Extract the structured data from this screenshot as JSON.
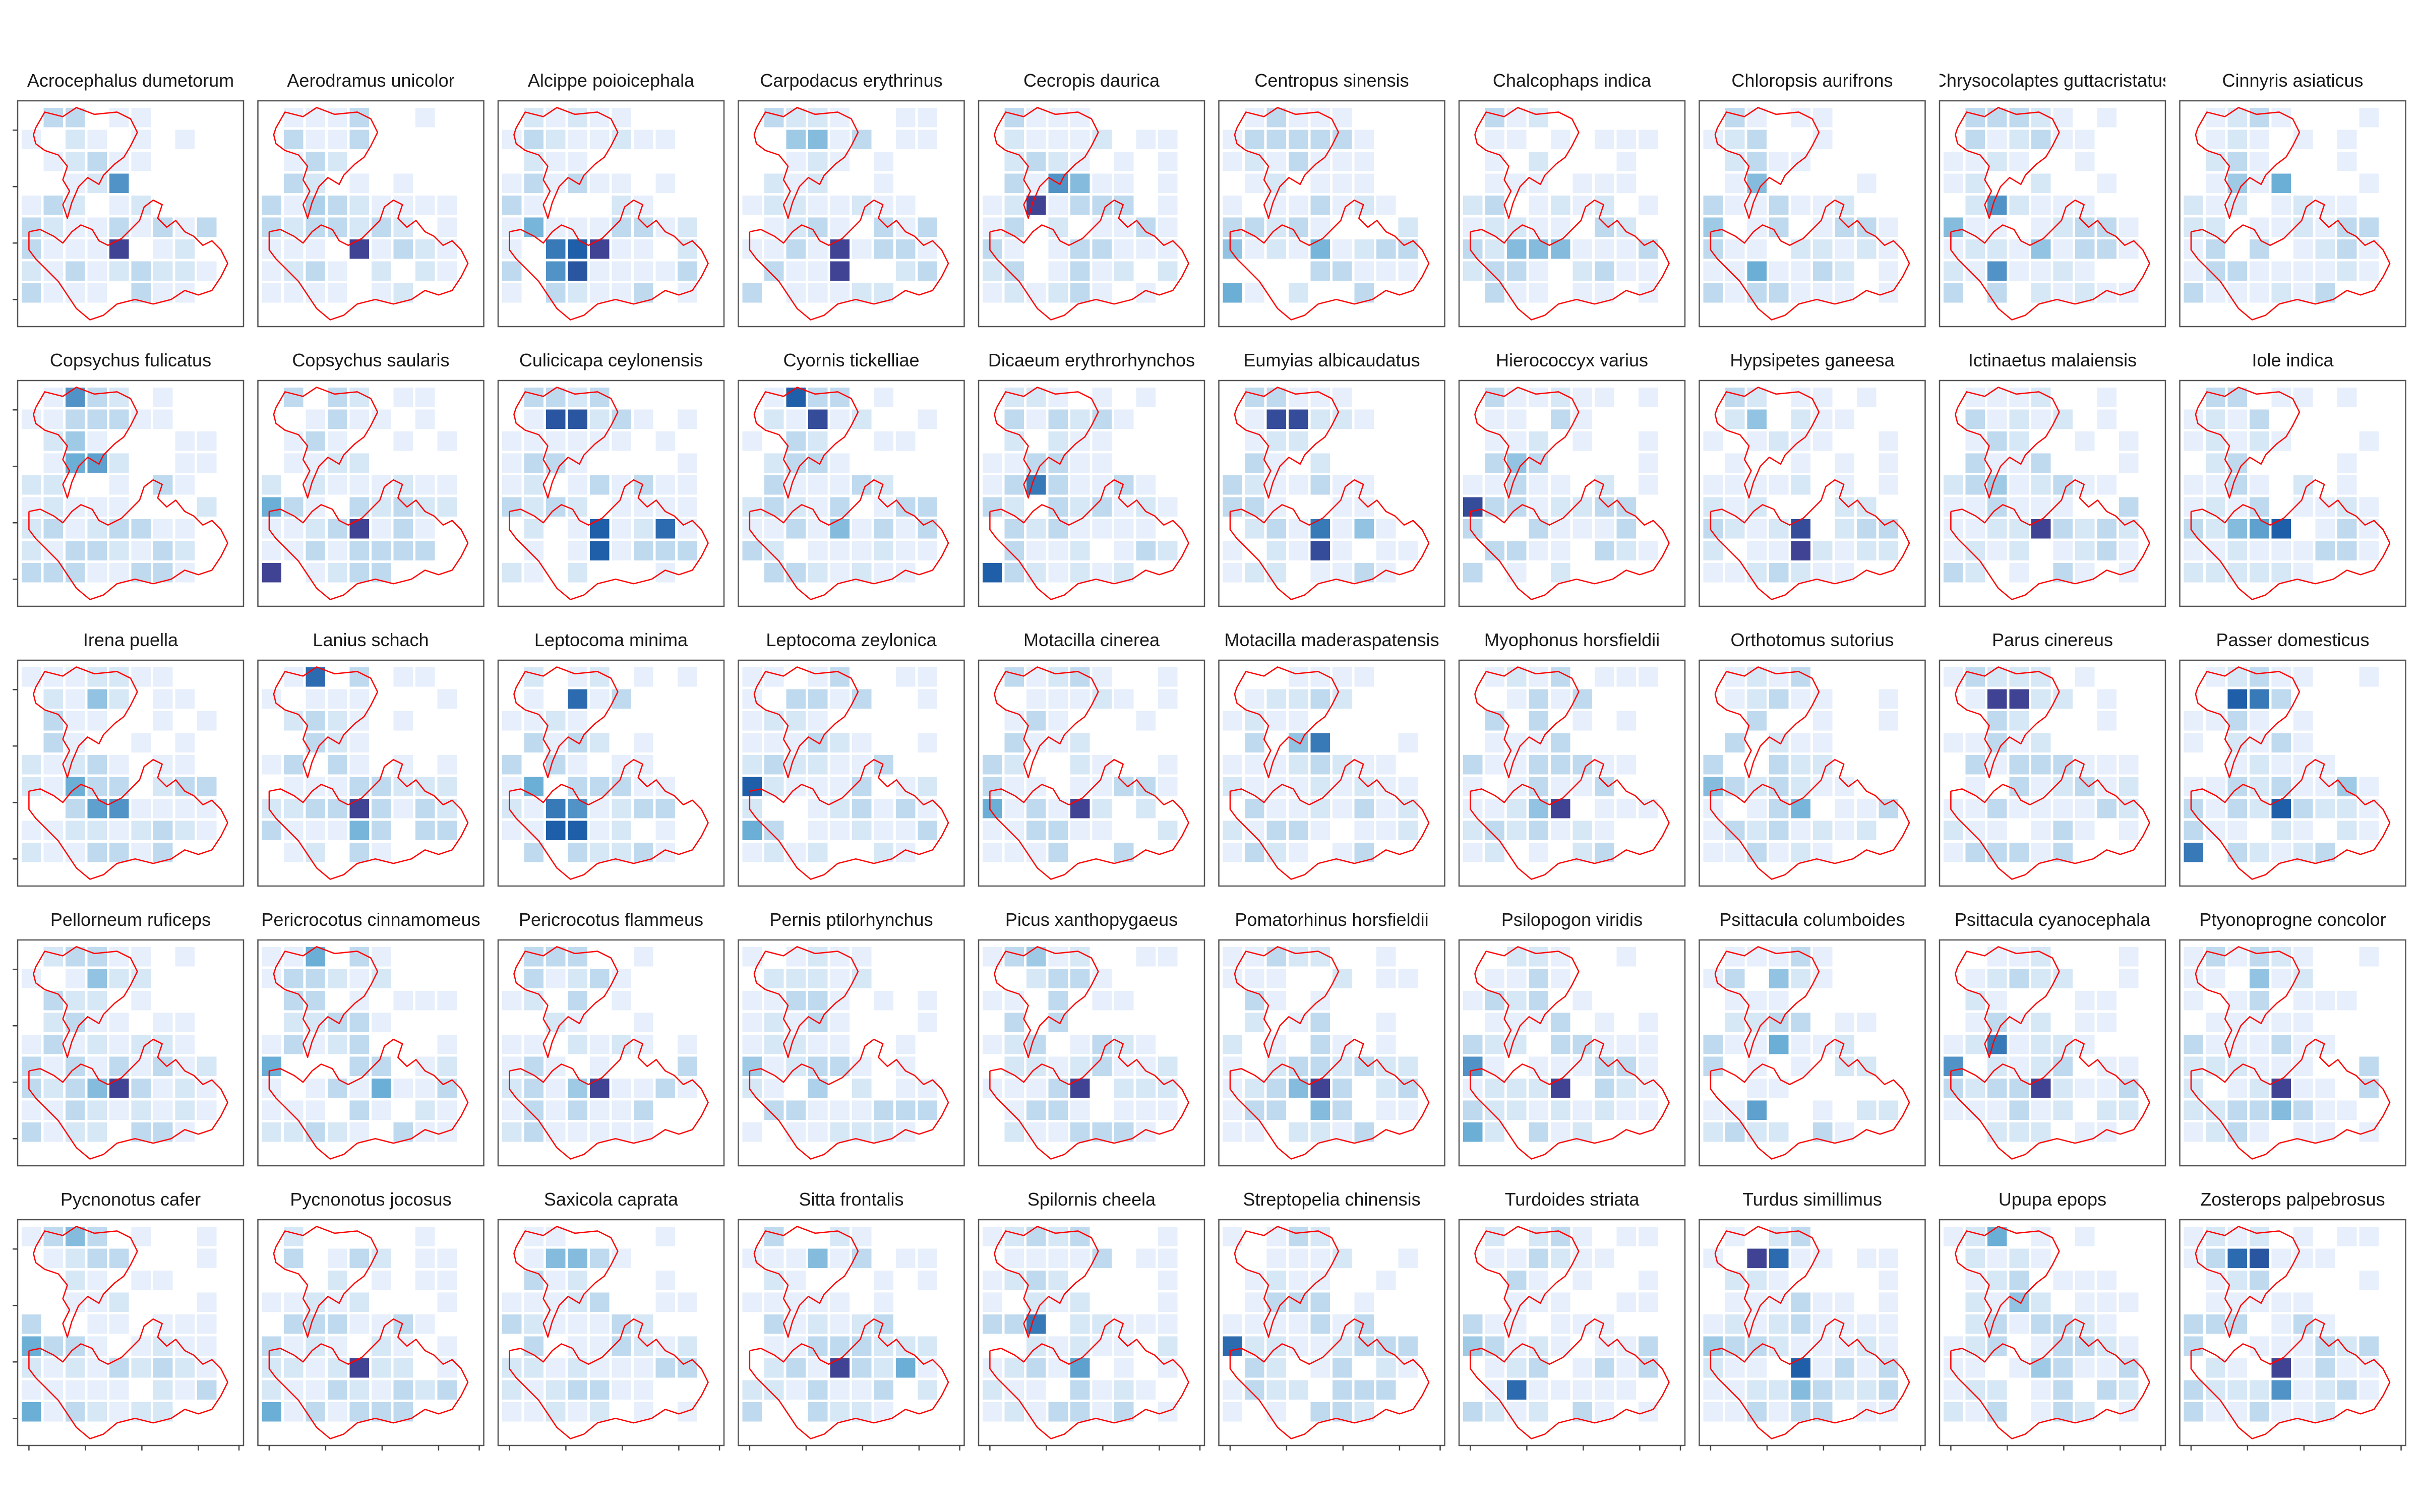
{
  "figure": {
    "colors": {
      "outline": "#ff0000",
      "panel_border": "#555555",
      "tick": "#444444",
      "scale_low": "#eef3fd",
      "scale_mid": "#6baed6",
      "scale_high_a": "#1f5ea8",
      "scale_high_b": "#4b3a8c"
    },
    "legend": "none",
    "grid": false
  },
  "chart_data": {
    "type": "heatmap",
    "title": "",
    "xlabel": "",
    "ylabel": "",
    "layout": "facet grid, 5 rows x 10 columns, one panel per species",
    "cell_grid": "9 columns x 9 rows of tiles per panel",
    "value_scale": "relative occurrence, 0 (light) to 1 (dark)",
    "panels": [
      {
        "species": "Acrocephalus dumetorum",
        "hotspots": [
          {
            "col": 4,
            "row": 3,
            "value": 0.6
          },
          {
            "col": 4,
            "row": 6,
            "value": 0.95
          }
        ]
      },
      {
        "species": "Aerodramus unicolor",
        "hotspots": [
          {
            "col": 2,
            "row": 4,
            "value": 0.25
          },
          {
            "col": 4,
            "row": 6,
            "value": 0.95
          }
        ]
      },
      {
        "species": "Alcippe poioicephala",
        "hotspots": [
          {
            "col": 2,
            "row": 6,
            "value": 0.7
          },
          {
            "col": 3,
            "row": 6,
            "value": 0.8
          },
          {
            "col": 3,
            "row": 7,
            "value": 0.85
          },
          {
            "col": 2,
            "row": 7,
            "value": 0.6
          },
          {
            "col": 4,
            "row": 6,
            "value": 0.95
          },
          {
            "col": 1,
            "row": 5,
            "value": 0.45
          }
        ]
      },
      {
        "species": "Carpodacus erythrinus",
        "hotspots": [
          {
            "col": 2,
            "row": 1,
            "value": 0.3
          },
          {
            "col": 3,
            "row": 1,
            "value": 0.4
          },
          {
            "col": 4,
            "row": 6,
            "value": 0.95
          },
          {
            "col": 4,
            "row": 7,
            "value": 0.95
          }
        ]
      },
      {
        "species": "Cecropis daurica",
        "hotspots": [
          {
            "col": 2,
            "row": 4,
            "value": 0.95
          },
          {
            "col": 3,
            "row": 3,
            "value": 0.6
          },
          {
            "col": 4,
            "row": 3,
            "value": 0.4
          }
        ]
      },
      {
        "species": "Centropus sinensis",
        "hotspots": [
          {
            "col": 0,
            "row": 6,
            "value": 0.35
          },
          {
            "col": 0,
            "row": 8,
            "value": 0.5
          },
          {
            "col": 4,
            "row": 6,
            "value": 0.45
          }
        ]
      },
      {
        "species": "Chalcophaps indica",
        "hotspots": [
          {
            "col": 2,
            "row": 6,
            "value": 0.4
          },
          {
            "col": 3,
            "row": 6,
            "value": 0.4
          },
          {
            "col": 4,
            "row": 6,
            "value": 0.4
          }
        ]
      },
      {
        "species": "Chloropsis aurifrons",
        "hotspots": [
          {
            "col": 2,
            "row": 3,
            "value": 0.4
          },
          {
            "col": 2,
            "row": 7,
            "value": 0.5
          },
          {
            "col": 0,
            "row": 5,
            "value": 0.3
          }
        ]
      },
      {
        "species": "Chrysocolaptes guttacristatus",
        "hotspots": [
          {
            "col": 2,
            "row": 4,
            "value": 0.6
          },
          {
            "col": 2,
            "row": 7,
            "value": 0.6
          },
          {
            "col": 0,
            "row": 5,
            "value": 0.4
          },
          {
            "col": 4,
            "row": 6,
            "value": 0.35
          }
        ]
      },
      {
        "species": "Cinnyris asiaticus",
        "hotspots": [
          {
            "col": 4,
            "row": 3,
            "value": 0.5
          },
          {
            "col": 2,
            "row": 3,
            "value": 0.3
          }
        ]
      },
      {
        "species": "Copsychus fulicatus",
        "hotspots": [
          {
            "col": 2,
            "row": 0,
            "value": 0.6
          },
          {
            "col": 2,
            "row": 3,
            "value": 0.5
          },
          {
            "col": 3,
            "row": 3,
            "value": 0.55
          },
          {
            "col": 2,
            "row": 2,
            "value": 0.3
          }
        ]
      },
      {
        "species": "Copsychus saularis",
        "hotspots": [
          {
            "col": 0,
            "row": 5,
            "value": 0.5
          },
          {
            "col": 0,
            "row": 8,
            "value": 0.95
          },
          {
            "col": 4,
            "row": 6,
            "value": 0.95
          }
        ]
      },
      {
        "species": "Culicicapa ceylonensis",
        "hotspots": [
          {
            "col": 2,
            "row": 1,
            "value": 0.85
          },
          {
            "col": 3,
            "row": 1,
            "value": 0.85
          },
          {
            "col": 4,
            "row": 6,
            "value": 0.8
          },
          {
            "col": 4,
            "row": 7,
            "value": 0.8
          },
          {
            "col": 7,
            "row": 6,
            "value": 0.75
          }
        ]
      },
      {
        "species": "Cyornis tickelliae",
        "hotspots": [
          {
            "col": 2,
            "row": 0,
            "value": 0.8
          },
          {
            "col": 3,
            "row": 1,
            "value": 0.9
          },
          {
            "col": 4,
            "row": 6,
            "value": 0.4
          }
        ]
      },
      {
        "species": "Dicaeum erythrorhynchos",
        "hotspots": [
          {
            "col": 2,
            "row": 4,
            "value": 0.7
          },
          {
            "col": 0,
            "row": 8,
            "value": 0.8
          }
        ]
      },
      {
        "species": "Eumyias albicaudatus",
        "hotspots": [
          {
            "col": 2,
            "row": 1,
            "value": 0.9
          },
          {
            "col": 3,
            "row": 1,
            "value": 0.9
          },
          {
            "col": 4,
            "row": 6,
            "value": 0.7
          },
          {
            "col": 4,
            "row": 7,
            "value": 0.9
          },
          {
            "col": 6,
            "row": 6,
            "value": 0.35
          }
        ]
      },
      {
        "species": "Hierococcyx varius",
        "hotspots": [
          {
            "col": 0,
            "row": 5,
            "value": 0.9
          },
          {
            "col": 2,
            "row": 3,
            "value": 0.35
          }
        ]
      },
      {
        "species": "Hypsipetes ganeesa",
        "hotspots": [
          {
            "col": 2,
            "row": 1,
            "value": 0.35
          },
          {
            "col": 4,
            "row": 6,
            "value": 0.9
          },
          {
            "col": 4,
            "row": 7,
            "value": 0.95
          }
        ]
      },
      {
        "species": "Ictinaetus malaiensis",
        "hotspots": [
          {
            "col": 4,
            "row": 6,
            "value": 0.95
          },
          {
            "col": 2,
            "row": 4,
            "value": 0.3
          }
        ]
      },
      {
        "species": "Iole indica",
        "hotspots": [
          {
            "col": 2,
            "row": 6,
            "value": 0.4
          },
          {
            "col": 3,
            "row": 6,
            "value": 0.55
          },
          {
            "col": 4,
            "row": 6,
            "value": 0.8
          }
        ]
      },
      {
        "species": "Irena puella",
        "hotspots": [
          {
            "col": 3,
            "row": 1,
            "value": 0.35
          },
          {
            "col": 2,
            "row": 5,
            "value": 0.5
          },
          {
            "col": 3,
            "row": 6,
            "value": 0.55
          },
          {
            "col": 4,
            "row": 6,
            "value": 0.6
          }
        ]
      },
      {
        "species": "Lanius schach",
        "hotspots": [
          {
            "col": 2,
            "row": 0,
            "value": 0.75
          },
          {
            "col": 4,
            "row": 6,
            "value": 0.95
          },
          {
            "col": 4,
            "row": 7,
            "value": 0.45
          }
        ]
      },
      {
        "species": "Leptocoma minima",
        "hotspots": [
          {
            "col": 3,
            "row": 1,
            "value": 0.75
          },
          {
            "col": 1,
            "row": 5,
            "value": 0.5
          },
          {
            "col": 2,
            "row": 6,
            "value": 0.7
          },
          {
            "col": 3,
            "row": 6,
            "value": 0.6
          },
          {
            "col": 2,
            "row": 7,
            "value": 0.8
          },
          {
            "col": 3,
            "row": 7,
            "value": 0.8
          }
        ]
      },
      {
        "species": "Leptocoma zeylonica",
        "hotspots": [
          {
            "col": 0,
            "row": 5,
            "value": 0.8
          },
          {
            "col": 0,
            "row": 7,
            "value": 0.5
          }
        ]
      },
      {
        "species": "Motacilla cinerea",
        "hotspots": [
          {
            "col": 0,
            "row": 6,
            "value": 0.5
          },
          {
            "col": 4,
            "row": 6,
            "value": 0.95
          }
        ]
      },
      {
        "species": "Motacilla maderaspatensis",
        "hotspots": [
          {
            "col": 4,
            "row": 3,
            "value": 0.7
          },
          {
            "col": 3,
            "row": 3,
            "value": 0.35
          }
        ]
      },
      {
        "species": "Myophonus horsfieldii",
        "hotspots": [
          {
            "col": 4,
            "row": 6,
            "value": 0.95
          },
          {
            "col": 3,
            "row": 6,
            "value": 0.35
          }
        ]
      },
      {
        "species": "Orthotomus sutorius",
        "hotspots": [
          {
            "col": 0,
            "row": 5,
            "value": 0.4
          },
          {
            "col": 4,
            "row": 6,
            "value": 0.45
          }
        ]
      },
      {
        "species": "Parus cinereus",
        "hotspots": [
          {
            "col": 2,
            "row": 1,
            "value": 0.95
          },
          {
            "col": 3,
            "row": 1,
            "value": 0.95
          }
        ]
      },
      {
        "species": "Passer domesticus",
        "hotspots": [
          {
            "col": 2,
            "row": 1,
            "value": 0.8
          },
          {
            "col": 3,
            "row": 1,
            "value": 0.7
          },
          {
            "col": 4,
            "row": 6,
            "value": 0.8
          },
          {
            "col": 0,
            "row": 8,
            "value": 0.7
          },
          {
            "col": 7,
            "row": 5,
            "value": 0.3
          }
        ]
      },
      {
        "species": "Pellorneum ruficeps",
        "hotspots": [
          {
            "col": 3,
            "row": 1,
            "value": 0.35
          },
          {
            "col": 3,
            "row": 6,
            "value": 0.4
          },
          {
            "col": 4,
            "row": 6,
            "value": 0.95
          }
        ]
      },
      {
        "species": "Pericrocotus cinnamomeus",
        "hotspots": [
          {
            "col": 2,
            "row": 0,
            "value": 0.5
          },
          {
            "col": 0,
            "row": 5,
            "value": 0.5
          },
          {
            "col": 5,
            "row": 6,
            "value": 0.5
          }
        ]
      },
      {
        "species": "Pericrocotus flammeus",
        "hotspots": [
          {
            "col": 4,
            "row": 6,
            "value": 0.95
          },
          {
            "col": 3,
            "row": 6,
            "value": 0.3
          }
        ]
      },
      {
        "species": "Pernis ptilorhynchus",
        "hotspots": [
          {
            "col": 0,
            "row": 5,
            "value": 0.3
          },
          {
            "col": 3,
            "row": 6,
            "value": 0.25
          }
        ]
      },
      {
        "species": "Picus xanthopygaeus",
        "hotspots": [
          {
            "col": 2,
            "row": 0,
            "value": 0.3
          },
          {
            "col": 4,
            "row": 6,
            "value": 0.95
          }
        ]
      },
      {
        "species": "Pomatorhinus horsfieldii",
        "hotspots": [
          {
            "col": 4,
            "row": 6,
            "value": 0.95
          },
          {
            "col": 3,
            "row": 6,
            "value": 0.4
          },
          {
            "col": 4,
            "row": 7,
            "value": 0.4
          }
        ]
      },
      {
        "species": "Psilopogon viridis",
        "hotspots": [
          {
            "col": 0,
            "row": 5,
            "value": 0.6
          },
          {
            "col": 0,
            "row": 8,
            "value": 0.5
          },
          {
            "col": 4,
            "row": 6,
            "value": 0.95
          }
        ]
      },
      {
        "species": "Psittacula columboides",
        "hotspots": [
          {
            "col": 3,
            "row": 1,
            "value": 0.35
          },
          {
            "col": 3,
            "row": 4,
            "value": 0.5
          },
          {
            "col": 2,
            "row": 7,
            "value": 0.55
          }
        ]
      },
      {
        "species": "Psittacula cyanocephala",
        "hotspots": [
          {
            "col": 2,
            "row": 4,
            "value": 0.7
          },
          {
            "col": 0,
            "row": 5,
            "value": 0.6
          },
          {
            "col": 4,
            "row": 6,
            "value": 0.95
          }
        ]
      },
      {
        "species": "Ptyonoprogne concolor",
        "hotspots": [
          {
            "col": 3,
            "row": 1,
            "value": 0.35
          },
          {
            "col": 4,
            "row": 6,
            "value": 0.95
          },
          {
            "col": 4,
            "row": 7,
            "value": 0.4
          }
        ]
      },
      {
        "species": "Pycnonotus cafer",
        "hotspots": [
          {
            "col": 0,
            "row": 5,
            "value": 0.5
          },
          {
            "col": 0,
            "row": 8,
            "value": 0.5
          },
          {
            "col": 2,
            "row": 0,
            "value": 0.4
          }
        ]
      },
      {
        "species": "Pycnonotus jocosus",
        "hotspots": [
          {
            "col": 0,
            "row": 8,
            "value": 0.5
          },
          {
            "col": 4,
            "row": 6,
            "value": 0.95
          }
        ]
      },
      {
        "species": "Saxicola caprata",
        "hotspots": [
          {
            "col": 2,
            "row": 1,
            "value": 0.4
          },
          {
            "col": 3,
            "row": 1,
            "value": 0.4
          }
        ]
      },
      {
        "species": "Sitta frontalis",
        "hotspots": [
          {
            "col": 3,
            "row": 1,
            "value": 0.4
          },
          {
            "col": 4,
            "row": 6,
            "value": 0.95
          },
          {
            "col": 7,
            "row": 6,
            "value": 0.5
          }
        ]
      },
      {
        "species": "Spilornis cheela",
        "hotspots": [
          {
            "col": 2,
            "row": 4,
            "value": 0.7
          },
          {
            "col": 4,
            "row": 6,
            "value": 0.55
          }
        ]
      },
      {
        "species": "Streptopelia chinensis",
        "hotspots": [
          {
            "col": 0,
            "row": 5,
            "value": 0.75
          }
        ]
      },
      {
        "species": "Turdoides striata",
        "hotspots": [
          {
            "col": 2,
            "row": 7,
            "value": 0.75
          },
          {
            "col": 0,
            "row": 5,
            "value": 0.3
          }
        ]
      },
      {
        "species": "Turdus simillimus",
        "hotspots": [
          {
            "col": 2,
            "row": 1,
            "value": 0.95
          },
          {
            "col": 3,
            "row": 1,
            "value": 0.75
          },
          {
            "col": 4,
            "row": 6,
            "value": 0.8
          },
          {
            "col": 4,
            "row": 7,
            "value": 0.4
          },
          {
            "col": 0,
            "row": 5,
            "value": 0.3
          }
        ]
      },
      {
        "species": "Upupa epops",
        "hotspots": [
          {
            "col": 2,
            "row": 0,
            "value": 0.5
          },
          {
            "col": 3,
            "row": 3,
            "value": 0.35
          },
          {
            "col": 4,
            "row": 6,
            "value": 0.3
          }
        ]
      },
      {
        "species": "Zosterops palpebrosus",
        "hotspots": [
          {
            "col": 2,
            "row": 1,
            "value": 0.75
          },
          {
            "col": 3,
            "row": 1,
            "value": 0.85
          },
          {
            "col": 4,
            "row": 6,
            "value": 0.95
          },
          {
            "col": 4,
            "row": 7,
            "value": 0.6
          }
        ]
      }
    ]
  }
}
